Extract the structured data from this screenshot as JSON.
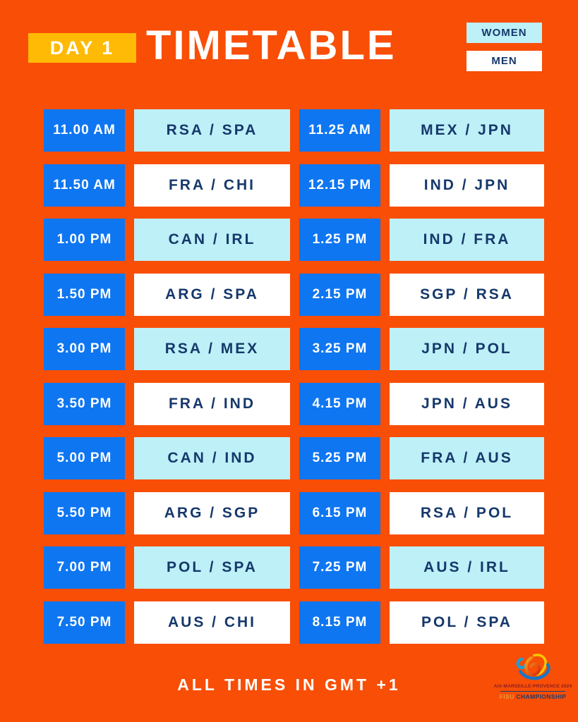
{
  "header": {
    "day_badge": "DAY 1",
    "title": "TIMETABLE",
    "legend": [
      {
        "label": "WOMEN",
        "category": "women"
      },
      {
        "label": "MEN",
        "category": "men"
      }
    ]
  },
  "schedule": {
    "rows": [
      {
        "category": "women",
        "slots": [
          {
            "time": "11.00 AM",
            "match": "RSA / SPA"
          },
          {
            "time": "11.25 AM",
            "match": "MEX / JPN"
          }
        ]
      },
      {
        "category": "men",
        "slots": [
          {
            "time": "11.50 AM",
            "match": "FRA / CHI"
          },
          {
            "time": "12.15 PM",
            "match": "IND / JPN"
          }
        ]
      },
      {
        "category": "women",
        "slots": [
          {
            "time": "1.00 PM",
            "match": "CAN / IRL"
          },
          {
            "time": "1.25 PM",
            "match": "IND / FRA"
          }
        ]
      },
      {
        "category": "men",
        "slots": [
          {
            "time": "1.50 PM",
            "match": "ARG / SPA"
          },
          {
            "time": "2.15 PM",
            "match": "SGP / RSA"
          }
        ]
      },
      {
        "category": "women",
        "slots": [
          {
            "time": "3.00 PM",
            "match": "RSA / MEX"
          },
          {
            "time": "3.25 PM",
            "match": "JPN / POL"
          }
        ]
      },
      {
        "category": "men",
        "slots": [
          {
            "time": "3.50 PM",
            "match": "FRA / IND"
          },
          {
            "time": "4.15 PM",
            "match": "JPN / AUS"
          }
        ]
      },
      {
        "category": "women",
        "slots": [
          {
            "time": "5.00 PM",
            "match": "CAN / IND"
          },
          {
            "time": "5.25 PM",
            "match": "FRA / AUS"
          }
        ]
      },
      {
        "category": "men",
        "slots": [
          {
            "time": "5.50 PM",
            "match": "ARG / SGP"
          },
          {
            "time": "6.15 PM",
            "match": "RSA / POL"
          }
        ]
      },
      {
        "category": "women",
        "slots": [
          {
            "time": "7.00 PM",
            "match": "POL / SPA"
          },
          {
            "time": "7.25 PM",
            "match": "AUS / IRL"
          }
        ]
      },
      {
        "category": "men",
        "slots": [
          {
            "time": "7.50 PM",
            "match": "AUS / CHI"
          },
          {
            "time": "8.15 PM",
            "match": "POL / SPA"
          }
        ]
      }
    ]
  },
  "footer": {
    "note": "ALL TIMES IN GMT +1",
    "logo": {
      "line1": "AIX-MARSEILLE-PROVENCE 2024",
      "fisu": "FISU",
      "championship": "CHAMPIONSHIP"
    }
  },
  "colors": {
    "background": "#F94E06",
    "day_badge_yellow": "#FFBA05",
    "time_blue": "#0E76F1",
    "women_cyan": "#BDF0F7",
    "men_white": "#FFFFFF",
    "text_navy": "#16386B",
    "logo_maroon": "#8A1D26",
    "logo_gold": "#E79A3C",
    "logo_navy": "#1D3C6E"
  }
}
